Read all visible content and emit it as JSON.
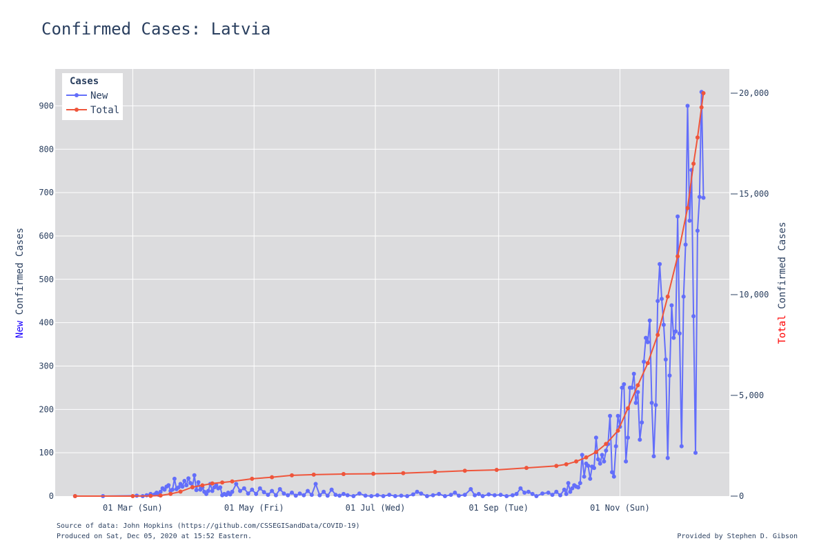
{
  "chart_data": {
    "type": "line",
    "title": "Confirmed Cases: Latvia",
    "y_left_label": {
      "prefix": "New",
      "suffix": " Confirmed Cases",
      "prefix_color": "#1a00ff"
    },
    "y_right_label": {
      "prefix": "Total",
      "suffix": " Confirmed Cases",
      "prefix_color": "#ff0000"
    },
    "x_range": [
      "2020-01-22",
      "2020-12-26"
    ],
    "x_ticks": [
      {
        "date": "2020-03-01",
        "label": "01 Mar (Sun)"
      },
      {
        "date": "2020-05-01",
        "label": "01 May (Fri)"
      },
      {
        "date": "2020-07-01",
        "label": "01 Jul (Wed)"
      },
      {
        "date": "2020-09-01",
        "label": "01 Sep (Tue)"
      },
      {
        "date": "2020-11-01",
        "label": "01 Nov (Sun)"
      }
    ],
    "y_left": {
      "range": [
        0,
        985
      ],
      "ticks": [
        0,
        100,
        200,
        300,
        400,
        500,
        600,
        700,
        800,
        900
      ],
      "tick_labels": [
        "0",
        "100",
        "200",
        "300",
        "400",
        "500",
        "600",
        "700",
        "800",
        "900"
      ]
    },
    "y_right": {
      "range": [
        0,
        21200
      ],
      "ticks": [
        0,
        5000,
        10000,
        15000,
        20000
      ],
      "tick_labels": [
        "0",
        "5,000",
        "10,000",
        "15,000",
        "20,000"
      ]
    },
    "grid": true,
    "legend": {
      "title": "Cases",
      "position": "top-left"
    },
    "series": [
      {
        "name": "New",
        "axis": "left",
        "color": "#636efa",
        "points": [
          [
            "2020-02-01",
            0
          ],
          [
            "2020-02-15",
            0
          ],
          [
            "2020-03-03",
            1
          ],
          [
            "2020-03-06",
            0
          ],
          [
            "2020-03-08",
            2
          ],
          [
            "2020-03-10",
            5
          ],
          [
            "2020-03-12",
            4
          ],
          [
            "2020-03-13",
            8
          ],
          [
            "2020-03-14",
            3
          ],
          [
            "2020-03-15",
            10
          ],
          [
            "2020-03-16",
            18
          ],
          [
            "2020-03-17",
            15
          ],
          [
            "2020-03-18",
            22
          ],
          [
            "2020-03-19",
            25
          ],
          [
            "2020-03-20",
            12
          ],
          [
            "2020-03-21",
            15
          ],
          [
            "2020-03-22",
            40
          ],
          [
            "2020-03-23",
            16
          ],
          [
            "2020-03-24",
            20
          ],
          [
            "2020-03-25",
            28
          ],
          [
            "2020-03-26",
            22
          ],
          [
            "2020-03-27",
            35
          ],
          [
            "2020-03-28",
            25
          ],
          [
            "2020-03-29",
            41
          ],
          [
            "2020-03-30",
            30
          ],
          [
            "2020-03-31",
            20
          ],
          [
            "2020-04-01",
            48
          ],
          [
            "2020-04-02",
            14
          ],
          [
            "2020-04-03",
            32
          ],
          [
            "2020-04-04",
            15
          ],
          [
            "2020-04-05",
            20
          ],
          [
            "2020-04-06",
            10
          ],
          [
            "2020-04-07",
            5
          ],
          [
            "2020-04-08",
            12
          ],
          [
            "2020-04-09",
            28
          ],
          [
            "2020-04-10",
            12
          ],
          [
            "2020-04-11",
            20
          ],
          [
            "2020-04-12",
            25
          ],
          [
            "2020-04-13",
            18
          ],
          [
            "2020-04-14",
            20
          ],
          [
            "2020-04-15",
            2
          ],
          [
            "2020-04-16",
            5
          ],
          [
            "2020-04-17",
            3
          ],
          [
            "2020-04-18",
            8
          ],
          [
            "2020-04-19",
            4
          ],
          [
            "2020-04-20",
            10
          ],
          [
            "2020-04-22",
            28
          ],
          [
            "2020-04-24",
            12
          ],
          [
            "2020-04-26",
            18
          ],
          [
            "2020-04-28",
            6
          ],
          [
            "2020-04-30",
            15
          ],
          [
            "2020-05-02",
            5
          ],
          [
            "2020-05-04",
            18
          ],
          [
            "2020-05-06",
            9
          ],
          [
            "2020-05-08",
            3
          ],
          [
            "2020-05-10",
            12
          ],
          [
            "2020-05-12",
            2
          ],
          [
            "2020-05-14",
            16
          ],
          [
            "2020-05-16",
            6
          ],
          [
            "2020-05-18",
            2
          ],
          [
            "2020-05-20",
            8
          ],
          [
            "2020-05-22",
            1
          ],
          [
            "2020-05-24",
            6
          ],
          [
            "2020-05-26",
            2
          ],
          [
            "2020-05-28",
            12
          ],
          [
            "2020-05-30",
            3
          ],
          [
            "2020-06-01",
            28
          ],
          [
            "2020-06-03",
            2
          ],
          [
            "2020-06-05",
            10
          ],
          [
            "2020-06-07",
            1
          ],
          [
            "2020-06-09",
            15
          ],
          [
            "2020-06-11",
            3
          ],
          [
            "2020-06-13",
            1
          ],
          [
            "2020-06-15",
            5
          ],
          [
            "2020-06-17",
            2
          ],
          [
            "2020-06-20",
            0
          ],
          [
            "2020-06-23",
            6
          ],
          [
            "2020-06-26",
            1
          ],
          [
            "2020-06-29",
            0
          ],
          [
            "2020-07-02",
            2
          ],
          [
            "2020-07-05",
            0
          ],
          [
            "2020-07-08",
            3
          ],
          [
            "2020-07-11",
            0
          ],
          [
            "2020-07-14",
            1
          ],
          [
            "2020-07-17",
            0
          ],
          [
            "2020-07-20",
            4
          ],
          [
            "2020-07-22",
            10
          ],
          [
            "2020-07-24",
            6
          ],
          [
            "2020-07-27",
            0
          ],
          [
            "2020-07-30",
            2
          ],
          [
            "2020-08-02",
            5
          ],
          [
            "2020-08-05",
            0
          ],
          [
            "2020-08-08",
            3
          ],
          [
            "2020-08-10",
            8
          ],
          [
            "2020-08-12",
            1
          ],
          [
            "2020-08-15",
            3
          ],
          [
            "2020-08-18",
            16
          ],
          [
            "2020-08-20",
            2
          ],
          [
            "2020-08-22",
            5
          ],
          [
            "2020-08-24",
            0
          ],
          [
            "2020-08-27",
            4
          ],
          [
            "2020-08-30",
            2
          ],
          [
            "2020-09-02",
            3
          ],
          [
            "2020-09-05",
            0
          ],
          [
            "2020-09-08",
            2
          ],
          [
            "2020-09-10",
            5
          ],
          [
            "2020-09-12",
            18
          ],
          [
            "2020-09-14",
            8
          ],
          [
            "2020-09-16",
            10
          ],
          [
            "2020-09-18",
            5
          ],
          [
            "2020-09-20",
            0
          ],
          [
            "2020-09-23",
            6
          ],
          [
            "2020-09-26",
            8
          ],
          [
            "2020-09-28",
            3
          ],
          [
            "2020-09-30",
            10
          ],
          [
            "2020-10-02",
            2
          ],
          [
            "2020-10-04",
            15
          ],
          [
            "2020-10-05",
            5
          ],
          [
            "2020-10-06",
            30
          ],
          [
            "2020-10-07",
            10
          ],
          [
            "2020-10-08",
            18
          ],
          [
            "2020-10-09",
            25
          ],
          [
            "2020-10-10",
            22
          ],
          [
            "2020-10-11",
            20
          ],
          [
            "2020-10-12",
            30
          ],
          [
            "2020-10-13",
            95
          ],
          [
            "2020-10-14",
            45
          ],
          [
            "2020-10-15",
            75
          ],
          [
            "2020-10-16",
            70
          ],
          [
            "2020-10-17",
            40
          ],
          [
            "2020-10-18",
            68
          ],
          [
            "2020-10-19",
            65
          ],
          [
            "2020-10-20",
            135
          ],
          [
            "2020-10-21",
            85
          ],
          [
            "2020-10-22",
            75
          ],
          [
            "2020-10-23",
            95
          ],
          [
            "2020-10-24",
            80
          ],
          [
            "2020-10-25",
            105
          ],
          [
            "2020-10-26",
            120
          ],
          [
            "2020-10-27",
            185
          ],
          [
            "2020-10-28",
            55
          ],
          [
            "2020-10-29",
            45
          ],
          [
            "2020-10-30",
            115
          ],
          [
            "2020-10-31",
            185
          ],
          [
            "2020-11-01",
            160
          ],
          [
            "2020-11-02",
            250
          ],
          [
            "2020-11-03",
            258
          ],
          [
            "2020-11-04",
            80
          ],
          [
            "2020-11-05",
            135
          ],
          [
            "2020-11-06",
            250
          ],
          [
            "2020-11-07",
            250
          ],
          [
            "2020-11-08",
            282
          ],
          [
            "2020-11-09",
            215
          ],
          [
            "2020-11-10",
            240
          ],
          [
            "2020-11-11",
            130
          ],
          [
            "2020-11-12",
            170
          ],
          [
            "2020-11-13",
            310
          ],
          [
            "2020-11-14",
            365
          ],
          [
            "2020-11-15",
            355
          ],
          [
            "2020-11-16",
            405
          ],
          [
            "2020-11-17",
            215
          ],
          [
            "2020-11-18",
            92
          ],
          [
            "2020-11-19",
            210
          ],
          [
            "2020-11-20",
            450
          ],
          [
            "2020-11-21",
            535
          ],
          [
            "2020-11-22",
            455
          ],
          [
            "2020-11-23",
            395
          ],
          [
            "2020-11-24",
            315
          ],
          [
            "2020-11-25",
            88
          ],
          [
            "2020-11-26",
            278
          ],
          [
            "2020-11-27",
            440
          ],
          [
            "2020-11-28",
            365
          ],
          [
            "2020-11-29",
            380
          ],
          [
            "2020-11-30",
            645
          ],
          [
            "2020-12-01",
            375
          ],
          [
            "2020-12-02",
            115
          ],
          [
            "2020-12-03",
            460
          ],
          [
            "2020-12-04",
            580
          ],
          [
            "2020-12-05",
            900
          ],
          [
            "2020-12-06",
            635
          ],
          [
            "2020-12-07",
            752
          ],
          [
            "2020-12-08",
            415
          ],
          [
            "2020-12-09",
            100
          ],
          [
            "2020-12-10",
            612
          ],
          [
            "2020-12-11",
            690
          ],
          [
            "2020-12-12",
            932
          ],
          [
            "2020-12-13",
            688
          ]
        ]
      },
      {
        "name": "Total",
        "axis": "right",
        "color": "#ef553b",
        "points": [
          [
            "2020-02-01",
            0
          ],
          [
            "2020-03-01",
            0
          ],
          [
            "2020-03-10",
            10
          ],
          [
            "2020-03-15",
            30
          ],
          [
            "2020-03-20",
            111
          ],
          [
            "2020-03-25",
            221
          ],
          [
            "2020-03-31",
            446
          ],
          [
            "2020-04-05",
            533
          ],
          [
            "2020-04-10",
            630
          ],
          [
            "2020-04-15",
            675
          ],
          [
            "2020-04-20",
            727
          ],
          [
            "2020-04-30",
            858
          ],
          [
            "2020-05-10",
            939
          ],
          [
            "2020-05-20",
            1030
          ],
          [
            "2020-05-31",
            1064
          ],
          [
            "2020-06-15",
            1096
          ],
          [
            "2020-06-30",
            1111
          ],
          [
            "2020-07-15",
            1140
          ],
          [
            "2020-07-31",
            1200
          ],
          [
            "2020-08-15",
            1257
          ],
          [
            "2020-08-31",
            1300
          ],
          [
            "2020-09-15",
            1400
          ],
          [
            "2020-09-30",
            1500
          ],
          [
            "2020-10-05",
            1580
          ],
          [
            "2020-10-10",
            1720
          ],
          [
            "2020-10-15",
            1920
          ],
          [
            "2020-10-20",
            2190
          ],
          [
            "2020-10-25",
            2590
          ],
          [
            "2020-10-31",
            3250
          ],
          [
            "2020-11-05",
            4360
          ],
          [
            "2020-11-10",
            5500
          ],
          [
            "2020-11-15",
            6600
          ],
          [
            "2020-11-20",
            8000
          ],
          [
            "2020-11-25",
            9900
          ],
          [
            "2020-11-30",
            11900
          ],
          [
            "2020-12-05",
            14300
          ],
          [
            "2020-12-08",
            16500
          ],
          [
            "2020-12-10",
            17800
          ],
          [
            "2020-12-12",
            19300
          ],
          [
            "2020-12-13",
            20000
          ]
        ]
      }
    ]
  },
  "footer": {
    "source": "Source of data: John Hopkins (https://github.com/CSSEGISandData/COVID-19)",
    "produced": "Produced on Sat, Dec 05, 2020 at 15:52 Eastern.",
    "credit": "Provided by Stephen D. Gibson"
  }
}
